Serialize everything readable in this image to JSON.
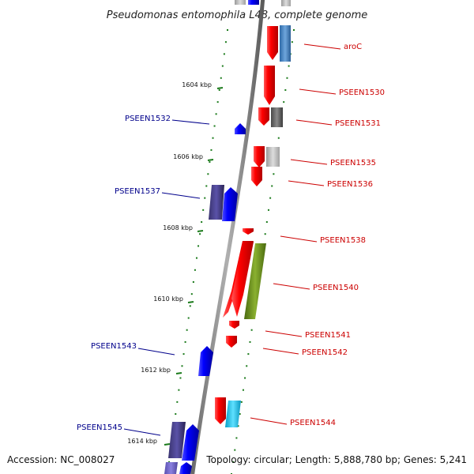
{
  "title": "Pseudomonas entomophila L48, complete genome",
  "footer": {
    "accession": "Accession: NC_008027",
    "summary": "Topology: circular; Length: 5,888,780 bp; Genes: 5,241"
  },
  "colors": {
    "forward_label": "#cc0000",
    "reverse_label": "#00008b",
    "backbone": "#8a8a8a",
    "tick": "#1a7a1a"
  },
  "kbp_marks": [
    "1604 kbp",
    "1606 kbp",
    "1608 kbp",
    "1610 kbp",
    "1612 kbp",
    "1614 kbp"
  ],
  "genes_forward": [
    {
      "label": "aroC",
      "color": "red"
    },
    {
      "label": "PSEEN1530",
      "color": "red"
    },
    {
      "label": "PSEEN1531",
      "color": "red"
    },
    {
      "label": "PSEEN1535",
      "color": "red"
    },
    {
      "label": "PSEEN1536",
      "color": "red"
    },
    {
      "label": "PSEEN1538",
      "color": "red"
    },
    {
      "label": "PSEEN1540",
      "color": "red"
    },
    {
      "label": "PSEEN1541",
      "color": "red"
    },
    {
      "label": "PSEEN1542",
      "color": "red"
    },
    {
      "label": "PSEEN1544",
      "color": "red"
    }
  ],
  "genes_reverse": [
    {
      "label": "PSEEN1532",
      "color": "blue"
    },
    {
      "label": "PSEEN1537",
      "color": "blue"
    },
    {
      "label": "PSEEN1543",
      "color": "blue"
    },
    {
      "label": "PSEEN1545",
      "color": "blue"
    }
  ]
}
